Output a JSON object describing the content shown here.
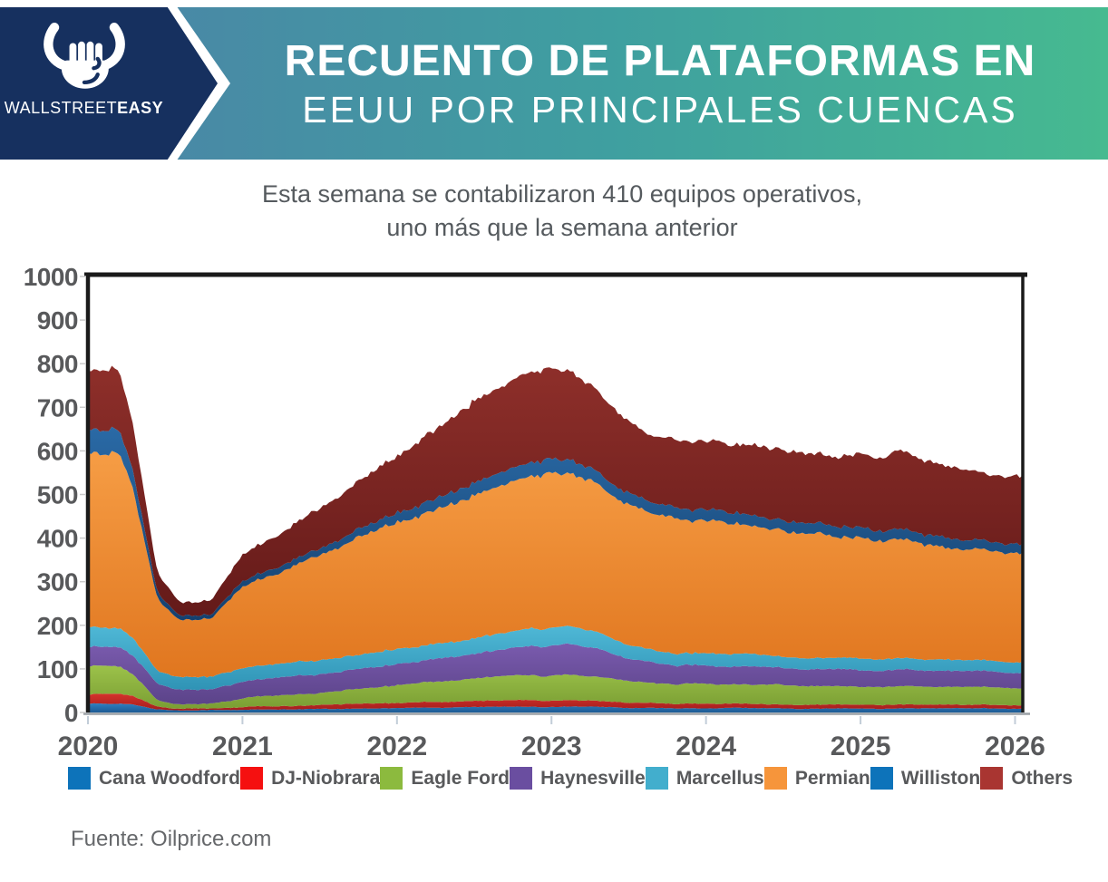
{
  "header": {
    "brand_regular": "WALLSTREET",
    "brand_bold": "EASY",
    "title_line1": "RECUENTO DE PLATAFORMAS EN",
    "title_line2": "EEUU POR PRINCIPALES CUENCAS",
    "colors": {
      "navy": "#16305f",
      "gradient_left": "#4d80a8",
      "gradient_right": "#46ba90"
    }
  },
  "subtitle": {
    "line1": "Esta semana se contabilizaron 410 equipos operativos,",
    "line2": "uno más que la semana anterior"
  },
  "source": "Fuente: Oilprice.com",
  "chart_data": {
    "type": "area",
    "stacked": true,
    "title": "Recuento de plataformas en EEUU por principales cuencas",
    "xlabel": "",
    "ylabel": "",
    "grid": false,
    "legend_position": "bottom",
    "xlim": [
      2020.0,
      2026.05
    ],
    "ylim": [
      0,
      1000
    ],
    "x_ticks": [
      2020,
      2021,
      2022,
      2023,
      2024,
      2025,
      2026
    ],
    "y_ticks": [
      0,
      100,
      200,
      300,
      400,
      500,
      600,
      700,
      800,
      900,
      1000
    ],
    "t": [
      2020.0,
      2020.2,
      2020.3,
      2020.45,
      2020.6,
      2020.8,
      2021.0,
      2021.25,
      2021.5,
      2021.75,
      2022.0,
      2022.25,
      2022.5,
      2022.75,
      2022.95,
      2023.1,
      2023.3,
      2023.45,
      2023.6,
      2023.8,
      2024.0,
      2024.2,
      2024.5,
      2024.75,
      2025.0,
      2025.25,
      2025.5,
      2025.7,
      2025.85,
      2026.05
    ],
    "series": [
      {
        "name": "Cana Woodford",
        "legend_color": "#0d73ba",
        "band_top": "#2f7fc1",
        "band_bottom": "#1c5a94",
        "values": [
          20,
          20,
          17,
          8,
          5,
          5,
          6,
          7,
          8,
          9,
          10,
          11,
          12,
          13,
          13,
          13,
          12,
          11,
          10,
          10,
          10,
          10,
          9,
          9,
          9,
          9,
          9,
          9,
          9,
          9
        ]
      },
      {
        "name": "DJ-Niobrara",
        "legend_color": "#f51010",
        "band_top": "#d6312c",
        "band_bottom": "#a31f1d",
        "values": [
          22,
          22,
          18,
          6,
          4,
          4,
          6,
          8,
          9,
          11,
          12,
          13,
          14,
          15,
          15,
          15,
          14,
          12,
          11,
          10,
          10,
          10,
          9,
          9,
          9,
          9,
          8,
          8,
          8,
          8
        ]
      },
      {
        "name": "Eagle Ford",
        "legend_color": "#8cba3e",
        "band_top": "#9cc24a",
        "band_bottom": "#7a9e33",
        "values": [
          65,
          64,
          50,
          15,
          10,
          11,
          20,
          24,
          28,
          34,
          40,
          46,
          52,
          56,
          58,
          58,
          55,
          50,
          47,
          46,
          46,
          45,
          44,
          43,
          42,
          42,
          41,
          40,
          40,
          40
        ]
      },
      {
        "name": "Haynesville",
        "legend_color": "#6a4ea0",
        "band_top": "#7a5bae",
        "band_bottom": "#5b4389",
        "values": [
          45,
          45,
          42,
          36,
          33,
          34,
          38,
          41,
          44,
          46,
          48,
          52,
          58,
          64,
          68,
          69,
          64,
          55,
          48,
          44,
          42,
          42,
          40,
          39,
          38,
          38,
          37,
          36,
          36,
          36
        ]
      },
      {
        "name": "Marcellus",
        "legend_color": "#42aecd",
        "band_top": "#4fb8d6",
        "band_bottom": "#2f93b5",
        "values": [
          45,
          44,
          40,
          31,
          28,
          28,
          31,
          32,
          32,
          33,
          34,
          35,
          36,
          38,
          40,
          40,
          37,
          33,
          30,
          28,
          28,
          28,
          26,
          26,
          26,
          26,
          25,
          24,
          25,
          25
        ]
      },
      {
        "name": "Permian",
        "legend_color": "#f6953b",
        "band_top": "#f69d45",
        "band_bottom": "#e0761f",
        "values": [
          403,
          405,
          330,
          165,
          130,
          136,
          185,
          210,
          238,
          265,
          292,
          315,
          330,
          342,
          348,
          345,
          335,
          322,
          312,
          306,
          304,
          302,
          288,
          282,
          278,
          272,
          262,
          252,
          248,
          250
        ]
      },
      {
        "name": "Williston",
        "legend_color": "#0d73ba",
        "band_top": "#2a6aa6",
        "band_bottom": "#15406e",
        "values": [
          55,
          54,
          40,
          14,
          10,
          10,
          12,
          14,
          16,
          19,
          22,
          26,
          30,
          31,
          32,
          31,
          29,
          27,
          26,
          25,
          25,
          25,
          24,
          24,
          24,
          24,
          23,
          22,
          22,
          22
        ]
      },
      {
        "name": "Others",
        "legend_color": "#a93531",
        "band_top": "#8e2f2a",
        "band_bottom": "#641a19",
        "values": [
          137,
          136,
          105,
          45,
          30,
          32,
          62,
          74,
          90,
          108,
          128,
          158,
          186,
          203,
          211,
          204,
          184,
          170,
          156,
          151,
          155,
          158,
          160,
          158,
          164,
          178,
          165,
          159,
          152,
          155
        ]
      }
    ],
    "annotations": [
      "Esta semana se contabilizaron 410 equipos operativos, uno más que la semana anterior"
    ]
  }
}
